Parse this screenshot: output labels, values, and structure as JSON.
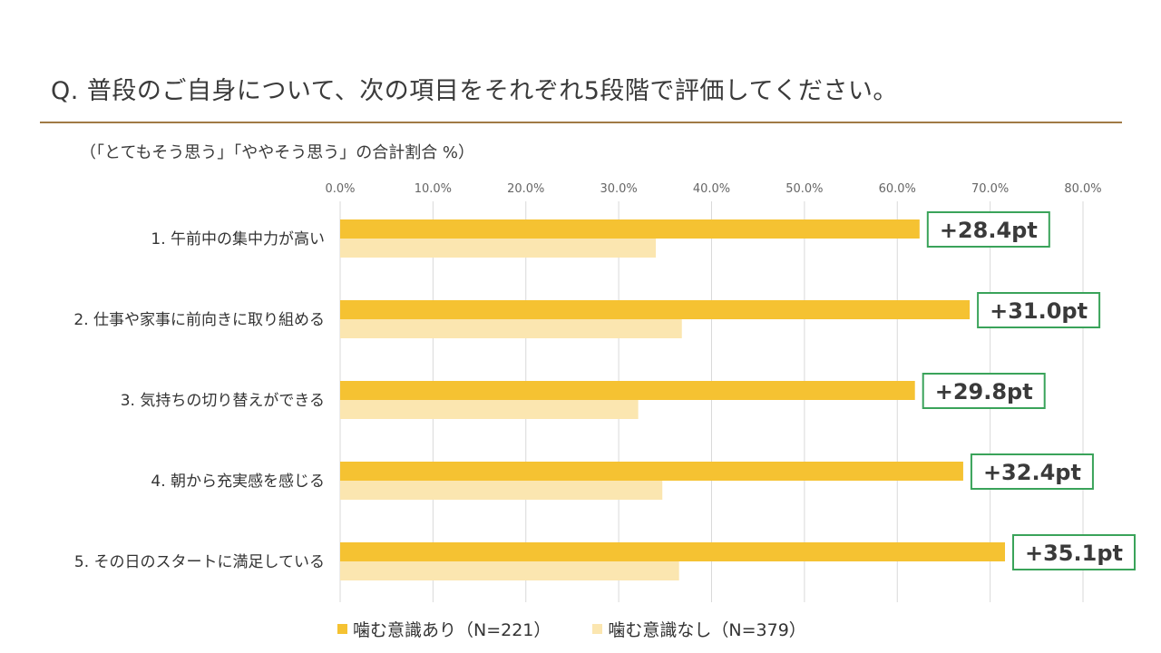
{
  "title": "Q.  普段のご自身について、次の項目をそれぞれ5段階で評価してください。",
  "subtitle": "（「とてもそう思う」「ややそう思う」の合計割合 %）",
  "colors": {
    "series1": "#f5c232",
    "series2": "#fbe6b0",
    "annotation_border": "#3aa35a",
    "grid": "#d9d9d9",
    "rule": "#a07a45"
  },
  "legend": [
    {
      "label": "噛む意識あり（N=221）"
    },
    {
      "label": "噛む意識なし（N=379）"
    }
  ],
  "chart_data": {
    "type": "bar",
    "orientation": "horizontal",
    "categories": [
      "1. 午前中の集中力が高い",
      "2. 仕事や家事に前向きに取り組める",
      "3. 気持ちの切り替えができる",
      "4. 朝から充実感を感じる",
      "5. その日のスタートに満足している"
    ],
    "series": [
      {
        "name": "噛む意識あり（N=221）",
        "values": [
          62.4,
          67.8,
          61.9,
          67.1,
          71.6
        ]
      },
      {
        "name": "噛む意識なし（N=379）",
        "values": [
          34.0,
          36.8,
          32.1,
          34.7,
          36.5
        ]
      }
    ],
    "annotations": [
      "+28.4pt",
      "+31.0pt",
      "+29.8pt",
      "+32.4pt",
      "+35.1pt"
    ],
    "xlim": [
      0,
      80
    ],
    "ticks": [
      "0.0%",
      "10.0%",
      "20.0%",
      "30.0%",
      "40.0%",
      "50.0%",
      "60.0%",
      "70.0%",
      "80.0%"
    ],
    "tick_values": [
      0,
      10,
      20,
      30,
      40,
      50,
      60,
      70,
      80
    ],
    "grid": true,
    "legend_position": "bottom"
  }
}
